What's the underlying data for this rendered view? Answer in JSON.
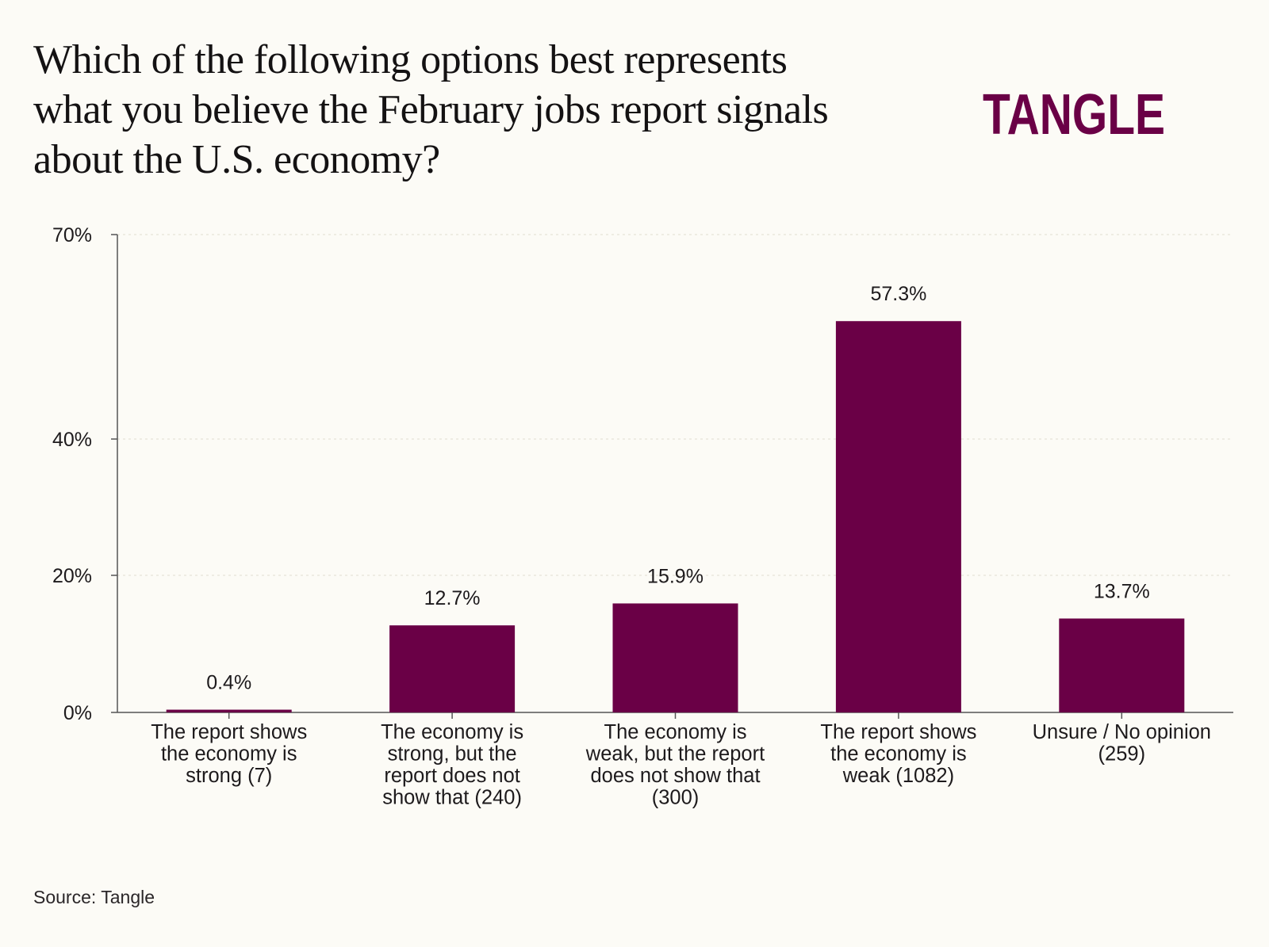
{
  "title_lines": [
    "Which of the following options best represents",
    "what you believe the February jobs report signals",
    "about the U.S. economy?"
  ],
  "brand": {
    "name": "TANGLE"
  },
  "source": "Source: Tangle",
  "colors": {
    "bar": "#6a0046",
    "brand": "#6a0046",
    "background": "#fcfbf6",
    "axis": "#555555",
    "grid": "#e6e3d8"
  },
  "chart_data": {
    "type": "bar",
    "title": "Which of the following options best represents what you believe the February jobs report signals about the U.S. economy?",
    "categories": [
      [
        "The report shows",
        "the economy is",
        "strong (7)"
      ],
      [
        "The economy is",
        "strong, but the",
        "report does not",
        "show that (240)"
      ],
      [
        "The economy is",
        "weak, but the report",
        "does not show that",
        "(300)"
      ],
      [
        "The report shows",
        "the economy is",
        "weak (1082)"
      ],
      [
        "Unsure / No opinion",
        "(259)"
      ]
    ],
    "values": [
      0.4,
      12.7,
      15.9,
      57.3,
      13.7
    ],
    "value_labels": [
      "0.4%",
      "12.7%",
      "15.9%",
      "57.3%",
      "13.7%"
    ],
    "y_ticks": [
      {
        "value": 0,
        "label": "0%"
      },
      {
        "value": 20,
        "label": "20%"
      },
      {
        "value": 40,
        "label": "40%"
      },
      {
        "value": 70,
        "label": "70%"
      }
    ],
    "ylim": [
      0,
      70
    ],
    "xlabel": "",
    "ylabel": "",
    "grid": true
  }
}
